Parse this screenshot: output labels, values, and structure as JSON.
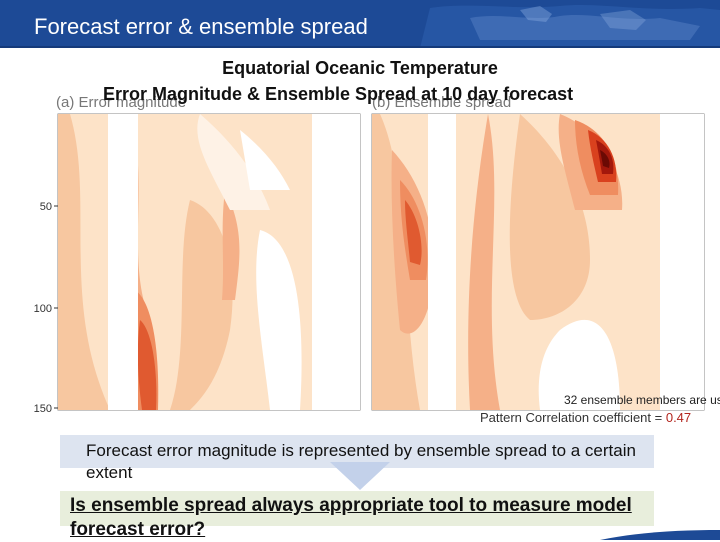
{
  "header": {
    "title": "Forecast error & ensemble spread"
  },
  "figure": {
    "title_line1": "Equatorial Oceanic Temperature",
    "title_line2": "Error Magnitude & Ensemble Spread at 10 day forecast",
    "panel_a_label": "(a)  Error magnitude",
    "panel_b_label": "(b)  Ensemble spread",
    "y_ticks": [
      "50",
      "100",
      "150"
    ],
    "members_note": "32 ensemble members are us",
    "correlation_label": "Pattern Correlation coefficient = ",
    "correlation_value": "0.47"
  },
  "statement": "Forecast error magnitude is represented by ensemble spread to a certain extent",
  "question": "Is ensemble spread always appropriate tool to measure model forecast error?",
  "colors": {
    "header": "#1d4a96",
    "contour_low": "#fde3c8",
    "contour_high": "#e85a2b",
    "contour_max": "#7a0c05"
  }
}
